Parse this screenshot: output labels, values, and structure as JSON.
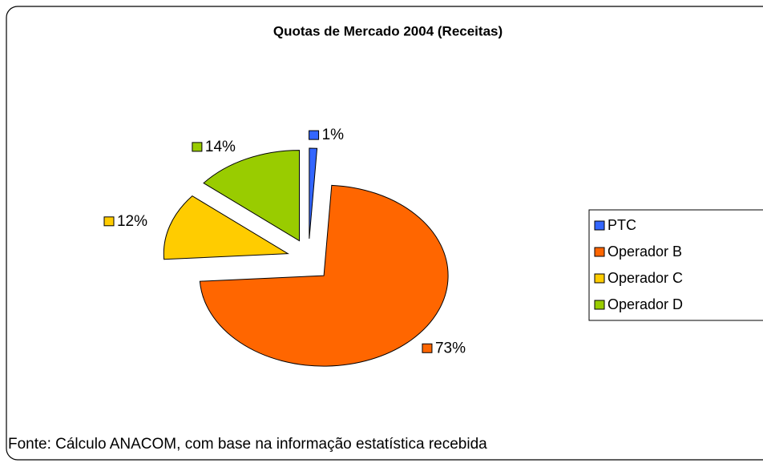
{
  "chart_data": {
    "type": "pie",
    "title": "Quotas de Mercado 2004 (Receitas)",
    "categories": [
      "PTC",
      "Operador B",
      "Operador C",
      "Operador D"
    ],
    "values": [
      1,
      73,
      12,
      14
    ],
    "value_labels": [
      "1%",
      "73%",
      "12%",
      "14%"
    ],
    "colors": [
      "#3366ff",
      "#ff6600",
      "#ffcc00",
      "#99cc00"
    ],
    "legend": "right",
    "source": "Fonte: Cálculo ANACOM, com base na informação estatística recebida"
  }
}
